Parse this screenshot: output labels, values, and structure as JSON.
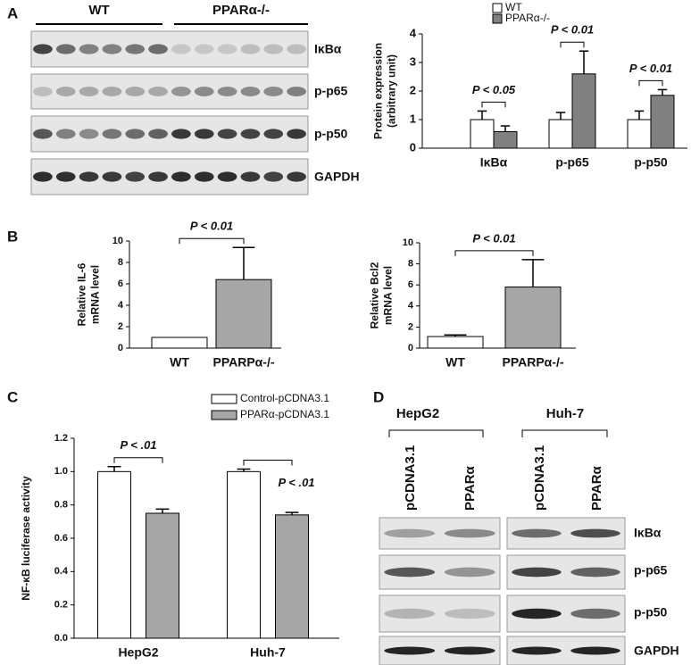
{
  "panels": {
    "a": "A",
    "b": "B",
    "c": "C",
    "d": "D"
  },
  "blot_a": {
    "groups": [
      "WT",
      "PPARα-/-"
    ],
    "bands": [
      "IκBα",
      "p-p65",
      "p-p50",
      "GAPDH"
    ]
  },
  "blot_d": {
    "cells": [
      "HepG2",
      "Huh-7"
    ],
    "lanes": [
      "pCDNA3.1",
      "PPARα",
      "pCDNA3.1",
      "PPARα"
    ],
    "bands": [
      "IκBα",
      "p-p65",
      "p-p50",
      "GAPDH"
    ]
  },
  "chart_data": [
    {
      "type": "bar",
      "ylabel": [
        "Protein expression",
        "(arbitrary unit)"
      ],
      "categories": [
        "IκBα",
        "p-p65",
        "p-p50"
      ],
      "series": [
        {
          "name": "WT",
          "color": "#ffffff",
          "values": [
            1.0,
            1.0,
            1.0
          ],
          "errors": [
            0.3,
            0.25,
            0.3
          ]
        },
        {
          "name": "PPARα-/-",
          "color": "#808080",
          "values": [
            0.58,
            2.6,
            1.85
          ],
          "errors": [
            0.2,
            0.8,
            0.2
          ]
        }
      ],
      "annotations": [
        "P < 0.05",
        "P < 0.01",
        "P < 0.01"
      ],
      "ylim": [
        0,
        4
      ],
      "yticks": [
        0,
        1,
        2,
        3,
        4
      ]
    },
    {
      "type": "bar",
      "ylabel": [
        "Relative IL-6",
        "mRNA level"
      ],
      "categories": [
        "WT",
        "PPARPα-/-"
      ],
      "values": [
        1.0,
        6.4
      ],
      "errors": [
        0,
        3.0
      ],
      "colors": [
        "#ffffff",
        "#a6a6a6"
      ],
      "annotations": [
        "P < 0.01"
      ],
      "ylim": [
        0,
        10
      ],
      "yticks": [
        0,
        2,
        4,
        6,
        8,
        10
      ]
    },
    {
      "type": "bar",
      "ylabel": [
        "Relative Bcl2",
        "mRNA level"
      ],
      "categories": [
        "WT",
        "PPARPα-/-"
      ],
      "values": [
        1.1,
        5.8
      ],
      "errors": [
        0.15,
        2.6
      ],
      "colors": [
        "#ffffff",
        "#a6a6a6"
      ],
      "annotations": [
        "P < 0.01"
      ],
      "ylim": [
        0,
        10
      ],
      "yticks": [
        0,
        2,
        4,
        6,
        8,
        10
      ]
    },
    {
      "type": "bar",
      "ylabel": [
        "NF-κB luciferase activity"
      ],
      "categories": [
        "HepG2",
        "Huh-7"
      ],
      "series": [
        {
          "name": "Control-pCDNA3.1",
          "color": "#ffffff",
          "values": [
            1.0,
            1.0
          ],
          "errors": [
            0.03,
            0.015
          ]
        },
        {
          "name": "PPARα-pCDNA3.1",
          "color": "#a6a6a6",
          "values": [
            0.75,
            0.74
          ],
          "errors": [
            0.025,
            0.015
          ]
        }
      ],
      "annotations": [
        "P < .01",
        "P < .01"
      ],
      "ylim": [
        0,
        1.2
      ],
      "yticks": [
        {
          "value": 0,
          "label": "0.0"
        },
        {
          "value": 0.2,
          "label": "0.2"
        },
        {
          "value": 0.4,
          "label": "0.4"
        },
        {
          "value": 0.6,
          "label": "0.6"
        },
        {
          "value": 0.8,
          "label": "0.8"
        },
        {
          "value": 1.0,
          "label": "1.0"
        },
        {
          "value": 1.2,
          "label": "1.2"
        }
      ]
    }
  ]
}
